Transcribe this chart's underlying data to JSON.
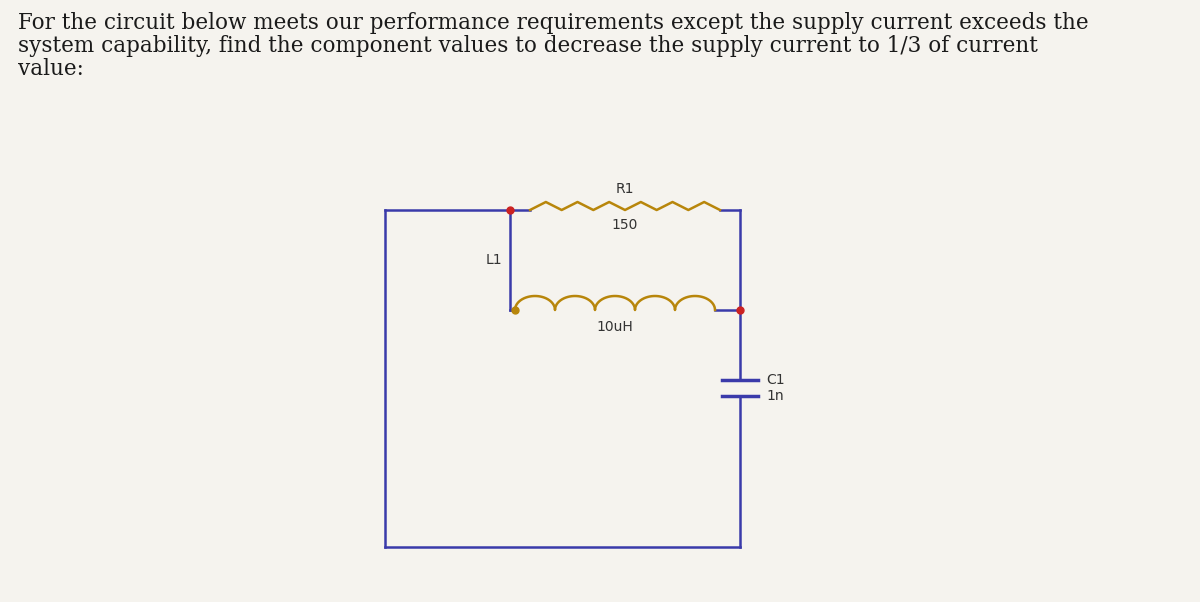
{
  "title_line1": "For the circuit below meets our performance requirements except the supply current exceeds the",
  "title_line2": "system capability, find the component values to decrease the supply current to 1/3 of current",
  "title_line3": "value:",
  "title_fontsize": 15.5,
  "title_color": "#1a1a1a",
  "bg_color": "#f5f3ee",
  "circuit_color": "#3a3aaa",
  "dot_color": "#cc2222",
  "resistor_color": "#b8860b",
  "inductor_color": "#b8860b",
  "capacitor_color": "#3a3aaa",
  "R1_label": "R1",
  "R1_value": "150",
  "L1_label": "L1",
  "L1_value": "10uH",
  "C1_label": "C1",
  "C1_value": "1n",
  "component_fontsize": 10,
  "lw": 1.8
}
